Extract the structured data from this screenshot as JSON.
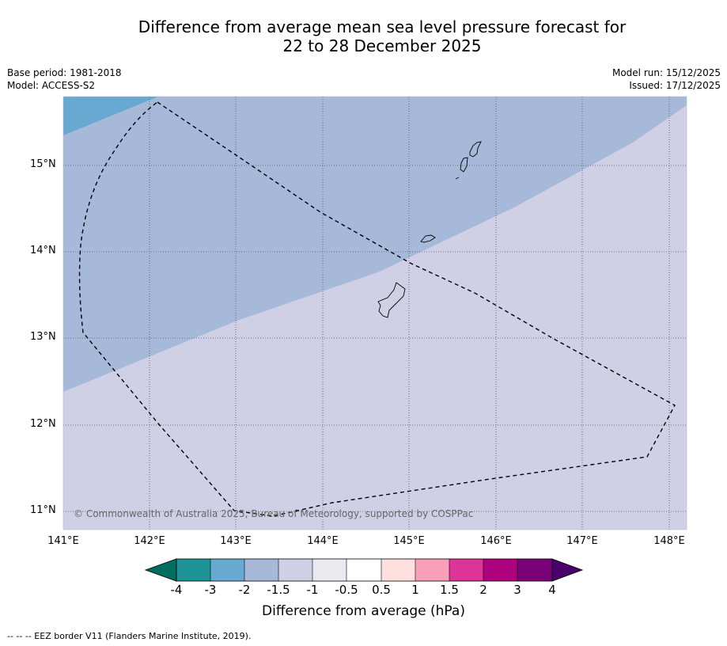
{
  "title_line1": "Difference from average mean sea level pressure forecast for",
  "title_line2": "22 to 28 December 2025",
  "base_period": "Base period: 1981-2018",
  "model": "Model: ACCESS-S2",
  "model_run": "Model run: 15/12/2025",
  "issued": "Issued: 17/12/2025",
  "copyright": "© Commonwealth of Australia 2025, Bureau of Meteorology, supported by COSPPac",
  "lat_labels": [
    "15°N",
    "14°N",
    "13°N",
    "12°N",
    "11°N"
  ],
  "lon_labels": [
    "141°E",
    "142°E",
    "143°E",
    "144°E",
    "145°E",
    "146°E",
    "147°E",
    "148°E"
  ],
  "colorbar": {
    "label": "Difference from average (hPa)",
    "ticks": [
      "-4",
      "-3",
      "-2",
      "-1.5",
      "-1",
      "-0.5",
      "0.5",
      "1",
      "1.5",
      "2",
      "3",
      "4"
    ],
    "colors": [
      "#006e5e",
      "#1e9496",
      "#67a9d0",
      "#a7b9d9",
      "#cfd0e6",
      "#ebe9ef",
      "#ffffff",
      "#fde0dd",
      "#f99fb9",
      "#dd3497",
      "#ae017e",
      "#7a0177",
      "#49006a"
    ]
  },
  "regions": {
    "diff_-3_to_-2": "#67a9d0",
    "diff_-2_to_-1.5": "#a7b9d9",
    "diff_-1.5_to_-1": "#cfd0e6"
  },
  "footnote": "--  --  -- EEZ border V11 (Flanders Marine Institute, 2019)."
}
